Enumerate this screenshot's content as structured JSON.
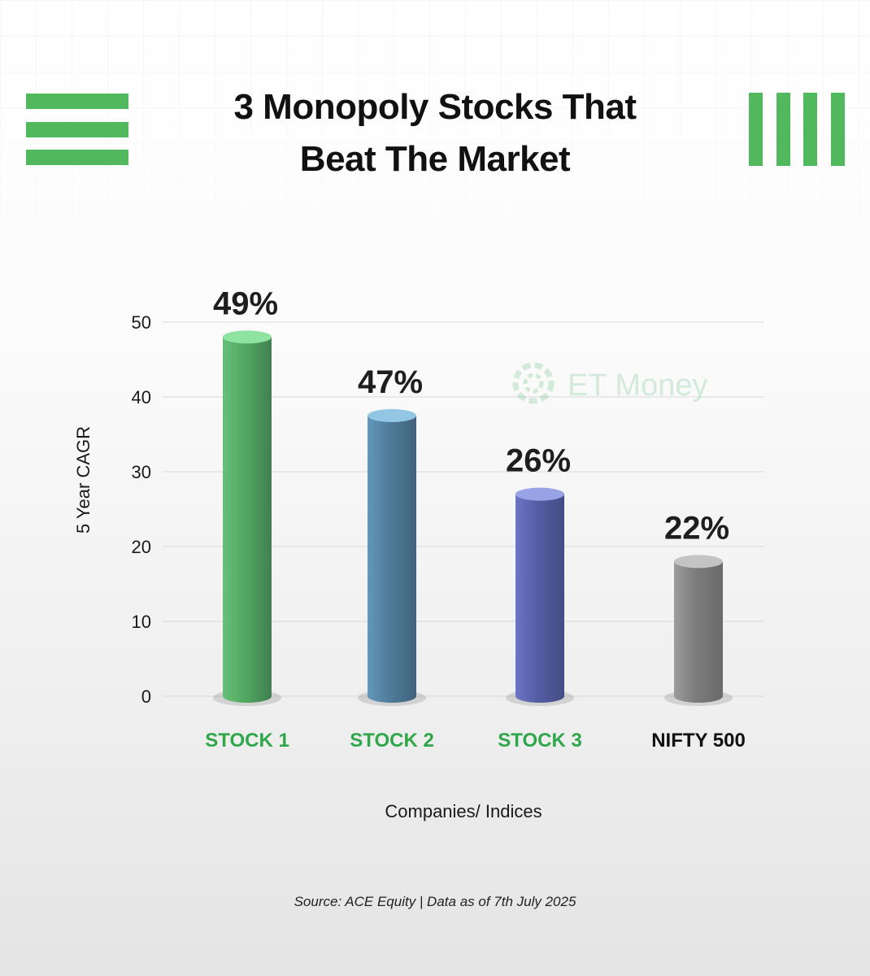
{
  "header": {
    "title_line1": "3 Monopoly Stocks That",
    "title_line2": "Beat The Market",
    "accent_color": "#52b85e"
  },
  "watermark": {
    "text": "ET Money",
    "icon": "et-money-logo-icon"
  },
  "chart_data": {
    "type": "bar",
    "categories": [
      "STOCK 1",
      "STOCK 2",
      "STOCK 3",
      "NIFTY 500"
    ],
    "values": [
      49,
      47,
      26,
      22
    ],
    "bar_heights": [
      48,
      37.5,
      27,
      18
    ],
    "value_labels": [
      "49%",
      "47%",
      "26%",
      "22%"
    ],
    "category_colors": [
      "#2ea84a",
      "#2ea84a",
      "#2ea84a",
      "#111111"
    ],
    "bar_colors": [
      {
        "base": "#52a862",
        "light": "#66c077",
        "dark": "#417f51",
        "cap": "#8fe3a0"
      },
      {
        "base": "#4e7c99",
        "light": "#6398bb",
        "dark": "#42627c",
        "cap": "#93c6e3"
      },
      {
        "base": "#545ea4",
        "light": "#6a76c4",
        "dark": "#434d85",
        "cap": "#98a3e6"
      },
      {
        "base": "#7c7c7c",
        "light": "#9c9c9c",
        "dark": "#6a6a6a",
        "cap": "#c4c4c4"
      }
    ],
    "ylabel": "5 Year CAGR",
    "xlabel": "Companies/ Indices",
    "yticks": [
      0,
      10,
      20,
      30,
      40,
      50
    ],
    "ylim": [
      0,
      50
    ],
    "grid": true
  },
  "footer": {
    "source": "Source: ACE Equity | Data as of 7th July 2025"
  }
}
